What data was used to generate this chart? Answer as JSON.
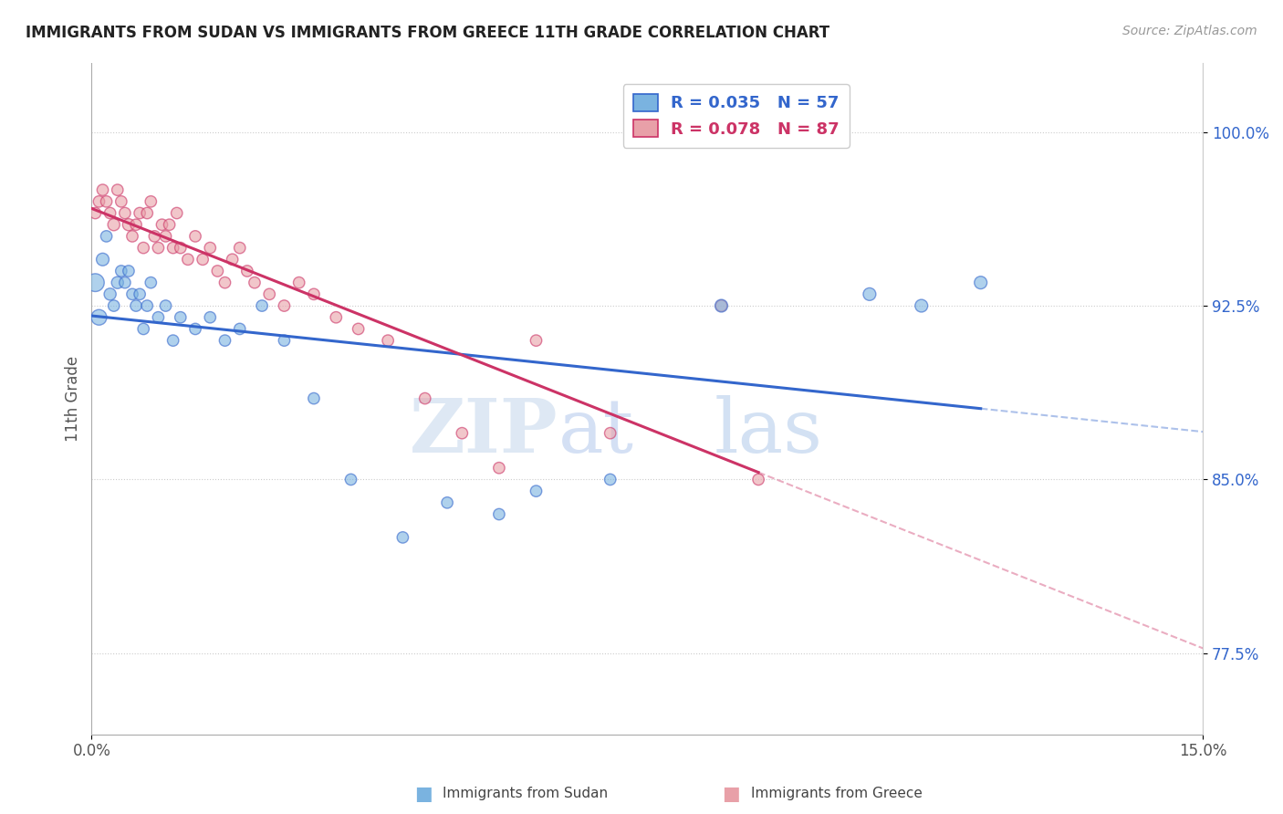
{
  "title": "IMMIGRANTS FROM SUDAN VS IMMIGRANTS FROM GREECE 11TH GRADE CORRELATION CHART",
  "source": "Source: ZipAtlas.com",
  "ylabel": "11th Grade",
  "y_tick_labels": [
    "77.5%",
    "85.0%",
    "92.5%",
    "100.0%"
  ],
  "y_tick_values": [
    77.5,
    85.0,
    92.5,
    100.0
  ],
  "xlim": [
    0.0,
    15.0
  ],
  "ylim": [
    74.0,
    103.0
  ],
  "color_sudan": "#7ab3e0",
  "color_greece": "#e8a0a8",
  "color_sudan_line": "#3366cc",
  "color_greece_line": "#cc3366",
  "sudan_x": [
    0.05,
    0.1,
    0.15,
    0.2,
    0.25,
    0.3,
    0.35,
    0.4,
    0.45,
    0.5,
    0.55,
    0.6,
    0.65,
    0.7,
    0.75,
    0.8,
    0.9,
    1.0,
    1.1,
    1.2,
    1.4,
    1.6,
    1.8,
    2.0,
    2.3,
    2.6,
    3.0,
    3.5,
    4.2,
    4.8,
    5.5,
    6.0,
    7.0,
    8.5,
    10.5,
    11.2,
    12.0
  ],
  "sudan_y": [
    93.5,
    92.0,
    94.5,
    95.5,
    93.0,
    92.5,
    93.5,
    94.0,
    93.5,
    94.0,
    93.0,
    92.5,
    93.0,
    91.5,
    92.5,
    93.5,
    92.0,
    92.5,
    91.0,
    92.0,
    91.5,
    92.0,
    91.0,
    91.5,
    92.5,
    91.0,
    88.5,
    85.0,
    82.5,
    84.0,
    83.5,
    84.5,
    85.0,
    92.5,
    93.0,
    92.5,
    93.5
  ],
  "sudan_sizes": [
    200,
    150,
    100,
    80,
    90,
    80,
    90,
    80,
    80,
    80,
    80,
    80,
    80,
    80,
    80,
    80,
    80,
    80,
    80,
    80,
    80,
    80,
    80,
    80,
    80,
    80,
    80,
    80,
    80,
    80,
    80,
    80,
    80,
    100,
    100,
    100,
    100
  ],
  "greece_x": [
    0.05,
    0.1,
    0.15,
    0.2,
    0.25,
    0.3,
    0.35,
    0.4,
    0.45,
    0.5,
    0.55,
    0.6,
    0.65,
    0.7,
    0.75,
    0.8,
    0.85,
    0.9,
    0.95,
    1.0,
    1.05,
    1.1,
    1.15,
    1.2,
    1.3,
    1.4,
    1.5,
    1.6,
    1.7,
    1.8,
    1.9,
    2.0,
    2.1,
    2.2,
    2.4,
    2.6,
    2.8,
    3.0,
    3.3,
    3.6,
    4.0,
    4.5,
    5.0,
    5.5,
    6.0,
    7.0,
    8.5,
    9.0
  ],
  "greece_y": [
    96.5,
    97.0,
    97.5,
    97.0,
    96.5,
    96.0,
    97.5,
    97.0,
    96.5,
    96.0,
    95.5,
    96.0,
    96.5,
    95.0,
    96.5,
    97.0,
    95.5,
    95.0,
    96.0,
    95.5,
    96.0,
    95.0,
    96.5,
    95.0,
    94.5,
    95.5,
    94.5,
    95.0,
    94.0,
    93.5,
    94.5,
    95.0,
    94.0,
    93.5,
    93.0,
    92.5,
    93.5,
    93.0,
    92.0,
    91.5,
    91.0,
    88.5,
    87.0,
    85.5,
    91.0,
    87.0,
    92.5,
    85.0
  ],
  "greece_sizes": [
    80,
    80,
    80,
    80,
    80,
    90,
    80,
    80,
    80,
    90,
    80,
    80,
    80,
    80,
    80,
    80,
    80,
    80,
    80,
    80,
    80,
    80,
    80,
    80,
    80,
    80,
    80,
    80,
    80,
    80,
    80,
    80,
    80,
    80,
    80,
    80,
    80,
    80,
    80,
    80,
    80,
    80,
    80,
    80,
    80,
    80,
    80,
    80
  ]
}
